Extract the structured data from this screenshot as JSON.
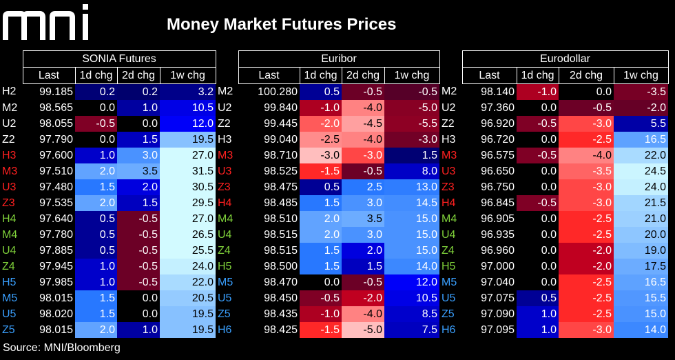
{
  "header": {
    "logo_text": "mni",
    "title": "Money Market Futures Prices"
  },
  "footer": {
    "source": "Source: MNI/Bloomberg"
  },
  "colors": {
    "year_2022": "#ffffff",
    "year_2023": "#ff2020",
    "year_2024": "#7fd13a",
    "year_2025": "#3aa0ff",
    "year_2026": "#3aa0ff"
  },
  "chart_data": {
    "type": "table",
    "title": "Money Market Futures Prices",
    "groups": [
      {
        "name": "SONIA Futures",
        "columns": [
          "Last",
          "1d chg",
          "2d chg",
          "1w chg"
        ],
        "rows": [
          {
            "code": "H2",
            "year": 2022,
            "values": [
              "99.185",
              "0.2",
              "0.2",
              "3.2"
            ]
          },
          {
            "code": "M2",
            "year": 2022,
            "values": [
              "98.565",
              "0.0",
              "1.0",
              "10.5"
            ]
          },
          {
            "code": "U2",
            "year": 2022,
            "values": [
              "98.055",
              "-0.5",
              "0.0",
              "12.0"
            ]
          },
          {
            "code": "Z2",
            "year": 2022,
            "values": [
              "97.790",
              "0.0",
              "1.5",
              "19.5"
            ]
          },
          {
            "code": "H3",
            "year": 2023,
            "values": [
              "97.600",
              "1.0",
              "3.0",
              "27.0"
            ]
          },
          {
            "code": "M3",
            "year": 2023,
            "values": [
              "97.510",
              "2.0",
              "3.5",
              "31.5"
            ]
          },
          {
            "code": "U3",
            "year": 2023,
            "values": [
              "97.480",
              "1.5",
              "2.0",
              "30.5"
            ]
          },
          {
            "code": "Z3",
            "year": 2023,
            "values": [
              "97.535",
              "2.0",
              "1.5",
              "29.5"
            ]
          },
          {
            "code": "H4",
            "year": 2024,
            "values": [
              "97.640",
              "0.5",
              "-0.5",
              "27.0"
            ]
          },
          {
            "code": "M4",
            "year": 2024,
            "values": [
              "97.780",
              "0.5",
              "-0.5",
              "26.5"
            ]
          },
          {
            "code": "U4",
            "year": 2024,
            "values": [
              "97.885",
              "0.5",
              "-0.5",
              "25.5"
            ]
          },
          {
            "code": "Z4",
            "year": 2024,
            "values": [
              "97.945",
              "1.0",
              "-0.5",
              "24.0"
            ]
          },
          {
            "code": "H5",
            "year": 2025,
            "values": [
              "97.985",
              "1.0",
              "-0.5",
              "22.0"
            ]
          },
          {
            "code": "M5",
            "year": 2025,
            "values": [
              "98.015",
              "1.5",
              "0.0",
              "20.5"
            ]
          },
          {
            "code": "U5",
            "year": 2025,
            "values": [
              "98.020",
              "1.5",
              "0.0",
              "19.5"
            ]
          },
          {
            "code": "Z5",
            "year": 2025,
            "values": [
              "98.015",
              "2.0",
              "1.0",
              "19.5"
            ]
          }
        ]
      },
      {
        "name": "Euribor",
        "columns": [
          "Last",
          "1d chg",
          "2d chg",
          "1w chg"
        ],
        "rows": [
          {
            "code": "M2",
            "year": 2022,
            "values": [
              "100.280",
              "0.5",
              "-0.5",
              "-0.5"
            ]
          },
          {
            "code": "U2",
            "year": 2022,
            "values": [
              "99.840",
              "-1.0",
              "-4.0",
              "-5.0"
            ]
          },
          {
            "code": "Z2",
            "year": 2022,
            "values": [
              "99.445",
              "-2.0",
              "-4.5",
              "-5.5"
            ]
          },
          {
            "code": "H3",
            "year": 2022,
            "values": [
              "99.040",
              "-2.5",
              "-4.0",
              "-3.0"
            ]
          },
          {
            "code": "M3",
            "year": 2023,
            "values": [
              "98.710",
              "-3.0",
              "-3.0",
              "1.5"
            ]
          },
          {
            "code": "U3",
            "year": 2023,
            "values": [
              "98.525",
              "-1.5",
              "-0.5",
              "8.0"
            ]
          },
          {
            "code": "Z3",
            "year": 2023,
            "values": [
              "98.475",
              "0.5",
              "2.5",
              "13.0"
            ]
          },
          {
            "code": "H4",
            "year": 2023,
            "values": [
              "98.485",
              "1.5",
              "3.0",
              "14.5"
            ]
          },
          {
            "code": "M4",
            "year": 2024,
            "values": [
              "98.510",
              "2.0",
              "3.5",
              "15.0"
            ]
          },
          {
            "code": "U4",
            "year": 2024,
            "values": [
              "98.515",
              "2.0",
              "3.0",
              "15.0"
            ]
          },
          {
            "code": "Z4",
            "year": 2024,
            "values": [
              "98.515",
              "1.5",
              "2.0",
              "15.0"
            ]
          },
          {
            "code": "H5",
            "year": 2024,
            "values": [
              "98.500",
              "1.5",
              "1.5",
              "14.0"
            ]
          },
          {
            "code": "M5",
            "year": 2025,
            "values": [
              "98.470",
              "0.0",
              "-0.5",
              "12.0"
            ]
          },
          {
            "code": "U5",
            "year": 2025,
            "values": [
              "98.450",
              "-0.5",
              "-2.0",
              "10.5"
            ]
          },
          {
            "code": "Z5",
            "year": 2025,
            "values": [
              "98.435",
              "-1.0",
              "-4.0",
              "8.5"
            ]
          },
          {
            "code": "H6",
            "year": 2026,
            "values": [
              "98.425",
              "-1.5",
              "-5.0",
              "7.5"
            ]
          }
        ]
      },
      {
        "name": "Eurodollar",
        "columns": [
          "Last",
          "1d chg",
          "2d chg",
          "1w chg"
        ],
        "rows": [
          {
            "code": "M2",
            "year": 2022,
            "values": [
              "98.140",
              "-1.0",
              "0.0",
              "-3.5"
            ]
          },
          {
            "code": "U2",
            "year": 2022,
            "values": [
              "97.360",
              "0.0",
              "-0.5",
              "-2.0"
            ]
          },
          {
            "code": "Z2",
            "year": 2022,
            "values": [
              "96.920",
              "-0.5",
              "-3.0",
              "5.5"
            ]
          },
          {
            "code": "H3",
            "year": 2022,
            "values": [
              "96.720",
              "0.0",
              "-2.5",
              "16.5"
            ]
          },
          {
            "code": "M3",
            "year": 2023,
            "values": [
              "96.575",
              "-0.5",
              "-4.0",
              "22.0"
            ]
          },
          {
            "code": "U3",
            "year": 2023,
            "values": [
              "96.650",
              "0.0",
              "-3.5",
              "24.5"
            ]
          },
          {
            "code": "Z3",
            "year": 2023,
            "values": [
              "96.750",
              "0.0",
              "-3.0",
              "24.0"
            ]
          },
          {
            "code": "H4",
            "year": 2023,
            "values": [
              "96.845",
              "-0.5",
              "-3.0",
              "21.5"
            ]
          },
          {
            "code": "M4",
            "year": 2024,
            "values": [
              "96.905",
              "0.0",
              "-2.5",
              "21.0"
            ]
          },
          {
            "code": "U4",
            "year": 2024,
            "values": [
              "96.935",
              "0.0",
              "-2.5",
              "20.0"
            ]
          },
          {
            "code": "Z4",
            "year": 2024,
            "values": [
              "96.960",
              "0.0",
              "-2.0",
              "19.0"
            ]
          },
          {
            "code": "H5",
            "year": 2024,
            "values": [
              "97.000",
              "0.0",
              "-2.0",
              "17.5"
            ]
          },
          {
            "code": "M5",
            "year": 2025,
            "values": [
              "97.040",
              "0.0",
              "-2.5",
              "16.5"
            ]
          },
          {
            "code": "U5",
            "year": 2025,
            "values": [
              "97.075",
              "0.5",
              "-2.5",
              "15.5"
            ]
          },
          {
            "code": "Z5",
            "year": 2025,
            "values": [
              "97.090",
              "1.0",
              "-2.5",
              "15.0"
            ]
          },
          {
            "code": "H6",
            "year": 2026,
            "values": [
              "97.095",
              "1.0",
              "-3.0",
              "14.0"
            ]
          }
        ]
      }
    ]
  }
}
